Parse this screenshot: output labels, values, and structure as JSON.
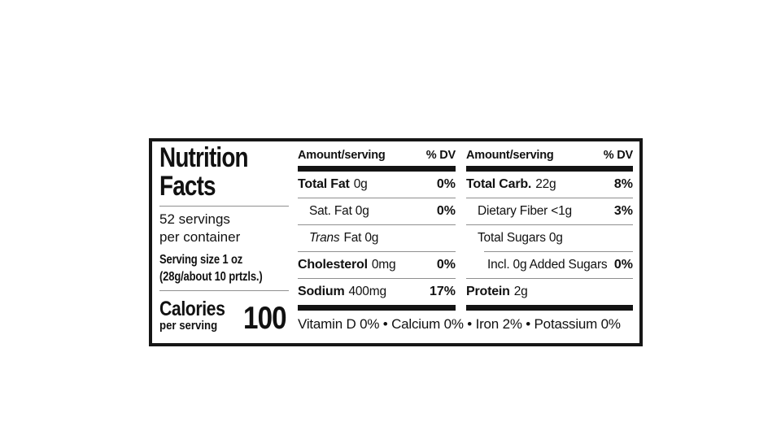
{
  "label": {
    "title": [
      "Nutrition",
      "Facts"
    ],
    "servings": [
      "52 servings",
      "per container"
    ],
    "serving_size": [
      "Serving size 1 oz",
      "(28g/about 10 prtzls.)"
    ],
    "calories": {
      "label": "Calories",
      "sublabel": "per serving",
      "value": "100"
    },
    "columns": [
      {
        "header": {
          "amount": "Amount/serving",
          "dv": "% DV"
        },
        "rows": [
          {
            "name": "Total Fat",
            "amount": "0g",
            "dv": "0%"
          },
          {
            "name": "Sat. Fat 0g",
            "dv": "0%"
          },
          {
            "name_italic": "Trans",
            "amount": "Fat 0g",
            "dv": ""
          },
          {
            "name": "Cholesterol",
            "amount": "0mg",
            "dv": "0%"
          },
          {
            "name": "Sodium",
            "amount": "400mg",
            "dv": "17%"
          }
        ]
      },
      {
        "header": {
          "amount": "Amount/serving",
          "dv": "% DV"
        },
        "rows": [
          {
            "name": "Total Carb.",
            "amount": "22g",
            "dv": "8%"
          },
          {
            "name": "Dietary Fiber <1g",
            "dv": "3%"
          },
          {
            "name": "Total Sugars 0g",
            "dv": ""
          },
          {
            "name": "Incl. 0g Added Sugars",
            "dv": "0%"
          },
          {
            "name": "Protein",
            "amount": "2g",
            "dv": ""
          }
        ]
      }
    ],
    "footnote": "Vitamin D 0% • Calcium 0% • Iron 2% • Potassium 0%",
    "colors": {
      "text": "#111111",
      "border": "#161616",
      "thick_bar": "#141414",
      "hairline": "#8f8f8f",
      "background": "#ffffff"
    }
  }
}
